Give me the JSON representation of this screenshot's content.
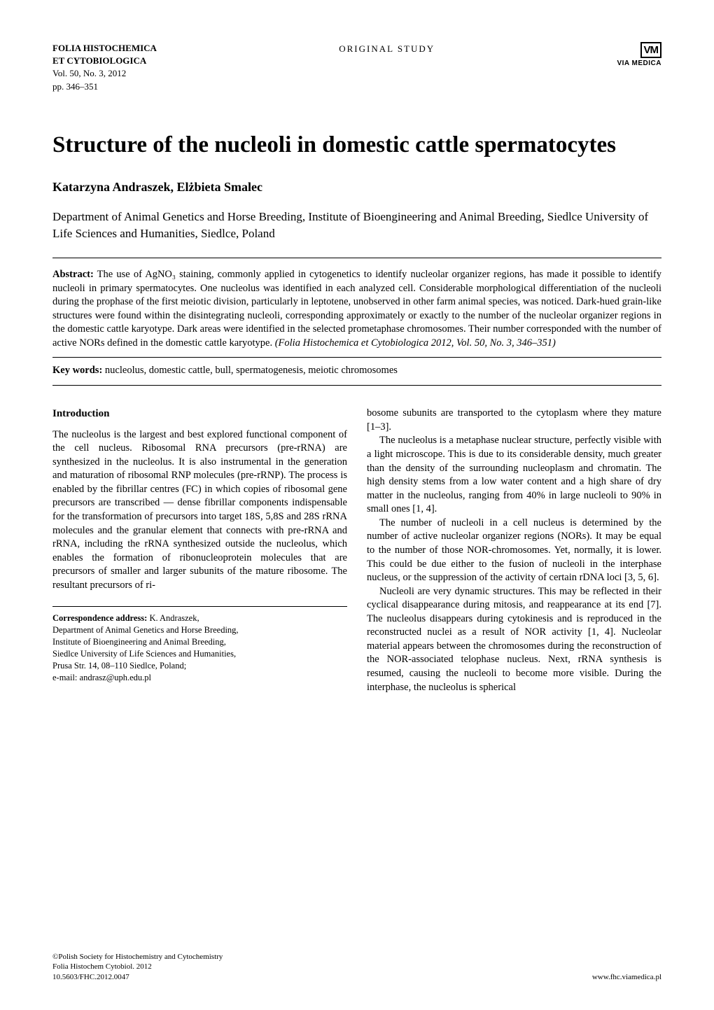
{
  "header": {
    "journal_name": "FOLIA HISTOCHEMICA",
    "journal_name2": "ET CYTOBIOLOGICA",
    "volume": "Vol. 50, No. 3, 2012",
    "pages": "pp. 346–351",
    "study_type": "ORIGINAL STUDY",
    "logo_text": "VM",
    "publisher": "VIA MEDICA"
  },
  "title": "Structure of the nucleoli in domestic cattle spermatocytes",
  "authors": "Katarzyna Andraszek, Elżbieta Smalec",
  "affiliation": "Department of Animal Genetics and Horse Breeding, Institute of Bioengineering and Animal Breeding, Siedlce University of Life Sciences and Humanities, Siedlce, Poland",
  "abstract": {
    "label": "Abstract:",
    "text": " The use of AgNO₃ staining, commonly applied in cytogenetics to identify nucleolar organizer regions, has made it possible to identify nucleoli in primary spermatocytes. One nucleolus was identified in each analyzed cell. Considerable morphological differentiation of the nucleoli during the prophase of the first meiotic division, particularly in leptotene, unobserved in other farm animal species, was noticed. Dark-hued grain-like structures were found within the disintegrating nucleoli, corresponding approximately or exactly to the number of the nucleolar organizer regions in the domestic cattle karyotype. Dark areas were identified in the selected prometaphase chromosomes. Their number corresponded with the number of active NORs defined in the domestic cattle karyotype. ",
    "citation": "(Folia Histochemica et Cytobiologica 2012, Vol. 50, No. 3, 346–351)"
  },
  "keywords": {
    "label": "Key words:",
    "text": " nucleolus, domestic cattle, bull, spermatogenesis, meiotic chromosomes"
  },
  "sections": {
    "intro_heading": "Introduction",
    "left_p1": "The nucleolus is the largest and best explored functional component of the cell nucleus. Ribosomal RNA precursors (pre-rRNA) are synthesized in the nucleolus. It is also instrumental in the generation and maturation of ribosomal RNP molecules (pre-rRNP). The process is enabled by the fibrillar centres (FC) in which copies of ribosomal gene precursors are transcribed — dense fibrillar components indispensable for the transformation of precursors into target 18S, 5,8S and 28S rRNA molecules and the granular element that connects with pre-rRNA and rRNA, including the rRNA synthesized outside the nucleolus, which enables the formation of ribonucleoprotein molecules that are precursors of smaller and larger subunits of the mature ribosome. The resultant precursors of ri-",
    "right_p1": "bosome subunits are transported to the cytoplasm where they mature [1–3].",
    "right_p2": "The nucleolus is a metaphase nuclear structure, perfectly visible with a light microscope. This is due to its considerable density, much greater than the density of the surrounding nucleoplasm and chromatin. The high density stems from a low water content and a high share of dry matter in the nucleolus, ranging from 40% in large nucleoli to 90% in small ones [1, 4].",
    "right_p3": "The number of nucleoli in a cell nucleus is determined by the number of active nucleolar organizer regions (NORs). It may be equal to the number of those NOR-chromosomes. Yet, normally, it is lower. This could be due either to the fusion of nucleoli in the interphase nucleus, or the suppression of the activity of certain rDNA loci [3, 5, 6].",
    "right_p4": "Nucleoli are very dynamic structures. This may be reflected in their cyclical disappearance during mitosis, and reappearance at its end [7]. The nucleolus disappears during cytokinesis and is reproduced in the reconstructed nuclei as a result of NOR activity [1, 4]. Nucleolar material appears between the chromosomes during the reconstruction of the NOR-associated telophase nucleus. Next, rRNA synthesis is resumed, causing the nucleoli to become more visible. During the interphase, the nucleolus is spherical"
  },
  "correspondence": {
    "label": "Correspondence address:",
    "name": " K. Andraszek,",
    "line1": "Department of Animal Genetics and Horse Breeding,",
    "line2": "Institute of Bioengineering and Animal Breeding,",
    "line3": "Siedlce University of Life Sciences and Humanities,",
    "line4": "Prusa Str. 14, 08–110 Siedlce, Poland;",
    "line5": "e-mail: andrasz@uph.edu.pl"
  },
  "footer": {
    "copyright": "©Polish Society for Histochemistry and Cytochemistry",
    "journal": "Folia Histochem Cytobiol. 2012",
    "doi": "10.5603/FHC.2012.0047",
    "url": "www.fhc.viamedica.pl"
  },
  "style": {
    "page_bg": "#ffffff",
    "text_color": "#000000",
    "rule_color": "#000000",
    "title_fontsize": 33,
    "authors_fontsize": 18,
    "body_fontsize": 14.5,
    "footer_fontsize": 11,
    "font_family": "Times New Roman"
  }
}
